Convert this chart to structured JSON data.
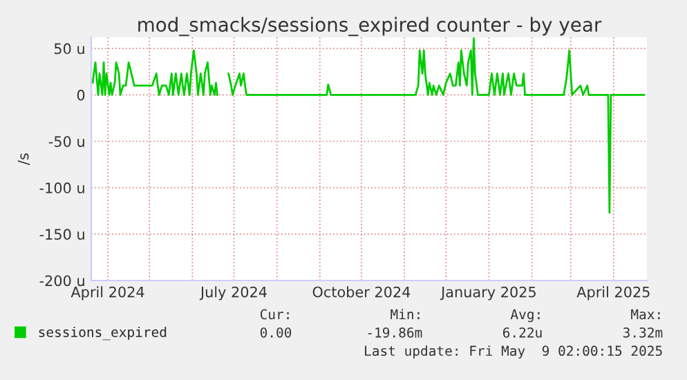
{
  "chart_data": {
    "type": "line",
    "title": "mod_smacks/sessions_expired counter - by year",
    "ylabel": "/s",
    "x": [
      "2024-03-21",
      "2024-03-23",
      "2024-03-25",
      "2024-03-26",
      "2024-03-28",
      "2024-03-29",
      "2024-03-30",
      "2024-03-31",
      "2024-04-02",
      "2024-04-03",
      "2024-04-04",
      "2024-04-06",
      "2024-04-07",
      "2024-04-09",
      "2024-04-10",
      "2024-04-12",
      "2024-04-14",
      "2024-04-16",
      "2024-04-18",
      "2024-04-20",
      "2024-05-03",
      "2024-05-06",
      "2024-05-07",
      "2024-05-08",
      "2024-05-10",
      "2024-05-13",
      "2024-05-15",
      "2024-05-17",
      "2024-05-18",
      "2024-05-20",
      "2024-05-22",
      "2024-05-24",
      "2024-05-25",
      "2024-05-26",
      "2024-05-28",
      "2024-05-30",
      "2024-05-31",
      "2024-06-02",
      "2024-06-04",
      "2024-06-05",
      "2024-06-07",
      "2024-06-09",
      "2024-06-10",
      "2024-06-12",
      "2024-06-14",
      "2024-06-15",
      "2024-06-17",
      "2024-06-18",
      "2024-06-19",
      "2024-06-22",
      "2024-06-27",
      "2024-06-29",
      "2024-06-30",
      "2024-07-02",
      "2024-07-05",
      "2024-07-06",
      "2024-07-08",
      "2024-07-09",
      "2024-07-10",
      "2024-09-06",
      "2024-09-07",
      "2024-09-09",
      "2024-11-09",
      "2024-11-11",
      "2024-11-12",
      "2024-11-14",
      "2024-11-15",
      "2024-11-16",
      "2024-11-18",
      "2024-11-19",
      "2024-11-21",
      "2024-11-22",
      "2024-11-24",
      "2024-11-26",
      "2024-11-29",
      "2024-12-01",
      "2024-12-04",
      "2024-12-06",
      "2024-12-08",
      "2024-12-10",
      "2024-12-11",
      "2024-12-12",
      "2024-12-14",
      "2024-12-16",
      "2024-12-17",
      "2024-12-19",
      "2024-12-20",
      "2024-12-21",
      "2024-12-22",
      "2024-12-24",
      "2025-01-01",
      "2025-01-03",
      "2025-01-05",
      "2025-01-07",
      "2025-01-09",
      "2025-01-11",
      "2025-01-12",
      "2025-01-15",
      "2025-01-17",
      "2025-01-19",
      "2025-01-21",
      "2025-01-25",
      "2025-01-26",
      "2025-01-27",
      "2025-02-24",
      "2025-02-26",
      "2025-02-28",
      "2025-03-02",
      "2025-03-08",
      "2025-03-10",
      "2025-03-13",
      "2025-03-14",
      "2025-03-28",
      "2025-03-29",
      "2025-03-30",
      "2025-04-23"
    ],
    "series": [
      {
        "name": "sessions_expired",
        "color": "#00cc00",
        "values": [
          13,
          35,
          0,
          23,
          0,
          35,
          0,
          23,
          0,
          13,
          0,
          13,
          35,
          23,
          0,
          10,
          10,
          35,
          23,
          10,
          10,
          23,
          10,
          0,
          10,
          10,
          0,
          23,
          0,
          23,
          0,
          23,
          10,
          0,
          23,
          0,
          23,
          48,
          23,
          0,
          23,
          0,
          23,
          35,
          0,
          10,
          0,
          13,
          0,
          null,
          23,
          10,
          0,
          10,
          23,
          10,
          23,
          10,
          0,
          0,
          11,
          0,
          0,
          10,
          48,
          23,
          48,
          23,
          0,
          13,
          0,
          10,
          0,
          10,
          0,
          13,
          23,
          10,
          10,
          35,
          10,
          48,
          23,
          10,
          35,
          48,
          0,
          61,
          23,
          0,
          0,
          23,
          0,
          23,
          0,
          23,
          0,
          23,
          0,
          23,
          10,
          10,
          23,
          0,
          0,
          18,
          48,
          0,
          10,
          0,
          10,
          0,
          0,
          -127,
          0,
          0
        ]
      }
    ],
    "xlim": [
      "2024-03-20",
      "2025-04-25"
    ],
    "xticks": [
      {
        "value": "2024-04-01",
        "label": "April 2024"
      },
      {
        "value": "2024-05-01",
        "label": null
      },
      {
        "value": "2024-06-01",
        "label": null
      },
      {
        "value": "2024-07-01",
        "label": "July 2024"
      },
      {
        "value": "2024-08-01",
        "label": null
      },
      {
        "value": "2024-09-01",
        "label": null
      },
      {
        "value": "2024-10-01",
        "label": "October 2024"
      },
      {
        "value": "2024-11-01",
        "label": null
      },
      {
        "value": "2024-12-01",
        "label": null
      },
      {
        "value": "2025-01-01",
        "label": "January 2025"
      },
      {
        "value": "2025-02-01",
        "label": null
      },
      {
        "value": "2025-03-01",
        "label": null
      },
      {
        "value": "2025-04-01",
        "label": "April 2025"
      }
    ],
    "ylim": [
      -200,
      62
    ],
    "yticks": [
      {
        "value": 50,
        "label": "50 u"
      },
      0,
      {
        "value": -50,
        "label": "-50 u"
      },
      {
        "value": -100,
        "label": "-100 u"
      },
      {
        "value": -150,
        "label": "-150 u"
      },
      {
        "value": -200,
        "label": "-200 u"
      }
    ],
    "grid": true,
    "legend": "bottom",
    "marker": "none",
    "line_style": "solid",
    "annotations": [
      "Cur:",
      "Min:",
      "Avg:",
      "Max:",
      "0.00",
      "-19.86m",
      "6.22u",
      "3.32m",
      "Last update: Fri May  9 02:00:15 2025"
    ]
  }
}
